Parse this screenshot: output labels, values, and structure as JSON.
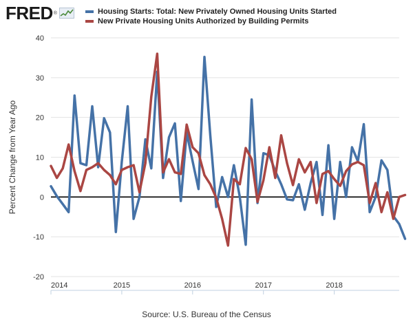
{
  "header": {
    "logo_text": "FRED",
    "logo_mark": "®",
    "logo_icon": "line-chart-icon"
  },
  "source": "Source: U.S. Bureau of the Census",
  "chart_data": {
    "type": "line",
    "title": "",
    "xlabel": "",
    "ylabel": "Percent Change from Year Ago",
    "ylim": [
      -20,
      40
    ],
    "yticks": [
      -20,
      -10,
      0,
      10,
      20,
      30,
      40
    ],
    "xlim": [
      2014.0,
      2018.917
    ],
    "xticks": [
      {
        "value": 2014,
        "label": "2014"
      },
      {
        "value": 2015,
        "label": "2015"
      },
      {
        "value": 2016,
        "label": "2016"
      },
      {
        "value": 2017,
        "label": "2017"
      },
      {
        "value": 2018,
        "label": "2018"
      }
    ],
    "grid": "horizontal",
    "legend_position": "top",
    "zero_line": true,
    "x_start": 2014.0,
    "x_step_months": 1,
    "series": [
      {
        "name": "Housing Starts: Total: New Privately Owned Housing Units Started",
        "color": "#4572a7",
        "values": [
          2.7,
          0.2,
          -1.8,
          -3.8,
          25.5,
          8.5,
          8.0,
          22.8,
          7.5,
          19.8,
          16.2,
          -8.8,
          8.8,
          22.8,
          -5.5,
          0.0,
          14.5,
          7.2,
          31.5,
          4.8,
          15.0,
          18.5,
          -1.0,
          16.2,
          9.0,
          2.0,
          35.2,
          15.5,
          -2.5,
          5.0,
          0.0,
          8.0,
          0.0,
          -12.0,
          24.5,
          -1.5,
          11.0,
          10.5,
          6.5,
          3.2,
          -0.6,
          -0.8,
          3.2,
          -3.2,
          3.5,
          8.8,
          -4.5,
          13.0,
          -5.5,
          8.8,
          0.0,
          12.5,
          9.0,
          18.3,
          -3.8,
          0.0,
          9.2,
          6.8,
          -4.8,
          -6.8,
          -10.5
        ]
      },
      {
        "name": "New Private Housing Units Authorized by Building Permits",
        "color": "#aa4643",
        "values": [
          7.8,
          4.8,
          7.2,
          13.2,
          6.5,
          1.5,
          6.8,
          7.5,
          8.5,
          6.8,
          5.5,
          3.2,
          6.8,
          7.5,
          8.0,
          1.2,
          8.5,
          25.2,
          36.0,
          6.2,
          9.5,
          6.2,
          5.8,
          18.2,
          12.5,
          11.0,
          5.5,
          3.2,
          -0.2,
          -5.5,
          -12.2,
          4.5,
          3.2,
          12.3,
          9.5,
          -1.2,
          4.2,
          12.5,
          4.8,
          15.5,
          8.5,
          3.0,
          9.5,
          6.2,
          8.8,
          -1.5,
          5.8,
          6.5,
          4.5,
          2.8,
          6.5,
          8.2,
          8.8,
          8.0,
          -1.5,
          3.5,
          -3.8,
          1.2,
          -5.5,
          0.0,
          0.5
        ]
      }
    ]
  }
}
